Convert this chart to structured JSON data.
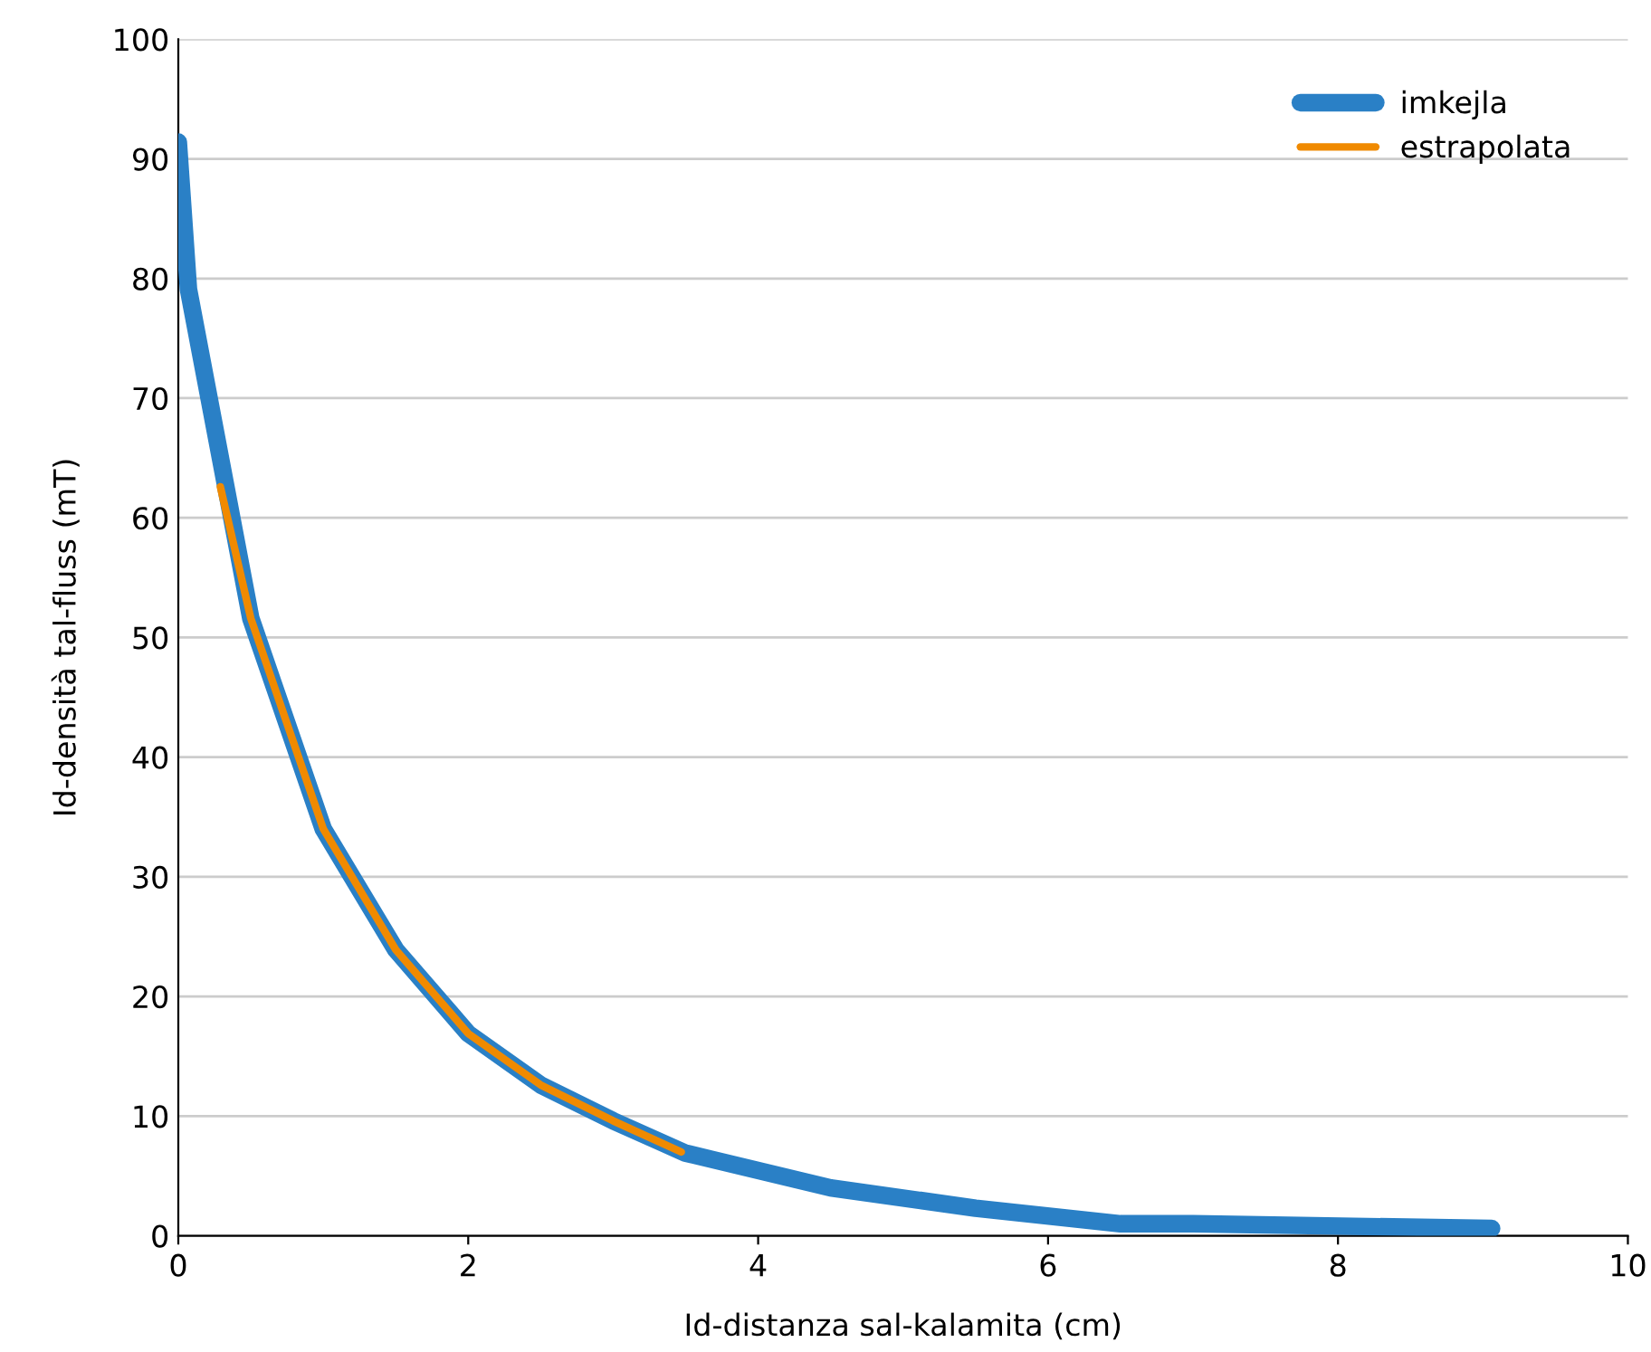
{
  "chart_data": {
    "type": "line",
    "xlabel": "Id-distanza sal-kalamita (cm)",
    "ylabel": "Id-densità tal-fluss (mT)",
    "xlim": [
      0,
      10
    ],
    "xticks": [
      0,
      2,
      4,
      6,
      8,
      10
    ],
    "ylim": [
      0,
      100
    ],
    "yticks": [
      0,
      10,
      20,
      30,
      40,
      50,
      60,
      70,
      80,
      90,
      100
    ],
    "grid": "y",
    "legend": "top right",
    "marker": "none",
    "line_style": "solid",
    "series": [
      {
        "name": "imkejla",
        "color": "#2a80c6",
        "x": [
          0,
          0.07,
          0.5,
          1,
          1.5,
          2,
          2.5,
          3,
          3.5,
          4.5,
          5.5,
          6.5,
          7,
          9.06
        ],
        "values": [
          91.4,
          79.1,
          51.6,
          34,
          23.9,
          16.9,
          12.6,
          9.6,
          6.9,
          4,
          2.3,
          1,
          1,
          0.6
        ]
      },
      {
        "name": "estrapolata",
        "color": "#f08a00",
        "x": [
          0.29,
          0.5,
          1,
          1.5,
          2,
          2.5,
          3,
          3.47
        ],
        "values": [
          62.6,
          51.6,
          34,
          23.9,
          16.9,
          12.6,
          9.6,
          7
        ]
      }
    ]
  }
}
